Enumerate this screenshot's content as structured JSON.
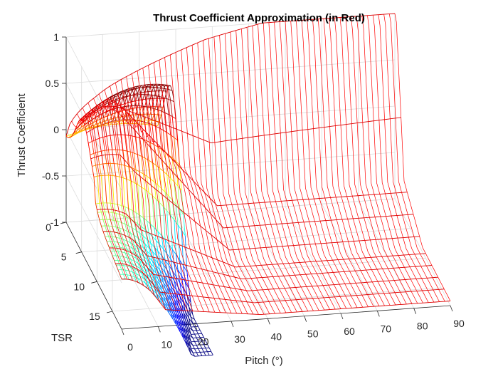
{
  "chart_data": {
    "type": "surface",
    "title": "Thrust Coefficient Approximation (in Red)",
    "xlabel": "Pitch (°)",
    "ylabel": "TSR",
    "zlabel": "Thrust Coefficient",
    "xlim": [
      0,
      90
    ],
    "ylim": [
      0,
      18
    ],
    "zlim": [
      -1,
      1
    ],
    "x_ticks": [
      "0",
      "10",
      "20",
      "30",
      "40",
      "50",
      "60",
      "70",
      "80",
      "90"
    ],
    "y_ticks": [
      "0",
      "5",
      "10",
      "15"
    ],
    "z_ticks": [
      "-1",
      "-0.5",
      "0",
      "0.5",
      "1"
    ],
    "grid": true,
    "series": [
      {
        "style": "wireframe, colored by height (jet colormap)",
        "pitch_range": [
          0,
          25
        ],
        "tsr_range": [
          0,
          18
        ],
        "values_cp": {
          "pitch": [
            0,
            5,
            10,
            15,
            20,
            25
          ],
          "tsr_0": [
            -0.1,
            0.1,
            0.1,
            -0.1,
            -0.3,
            -0.4
          ],
          "tsr_3": [
            0.05,
            0.35,
            0.3,
            0.05,
            -0.2,
            -0.35
          ],
          "tsr_6": [
            0.2,
            0.45,
            0.35,
            0.1,
            -0.15,
            -0.3
          ],
          "tsr_10": [
            0.05,
            0.3,
            0.2,
            -0.15,
            -0.5,
            -0.8
          ],
          "tsr_14": [
            -0.3,
            0.0,
            -0.3,
            -0.8,
            -1.3,
            -1.7
          ],
          "tsr_18": [
            -0.6,
            -0.3,
            -0.8,
            -1.4,
            -1.9,
            -2.4
          ]
        }
      },
      {
        "style": "red wireframe approximation",
        "pitch_range": [
          0,
          90
        ],
        "tsr_range": [
          0,
          18
        ]
      }
    ]
  }
}
